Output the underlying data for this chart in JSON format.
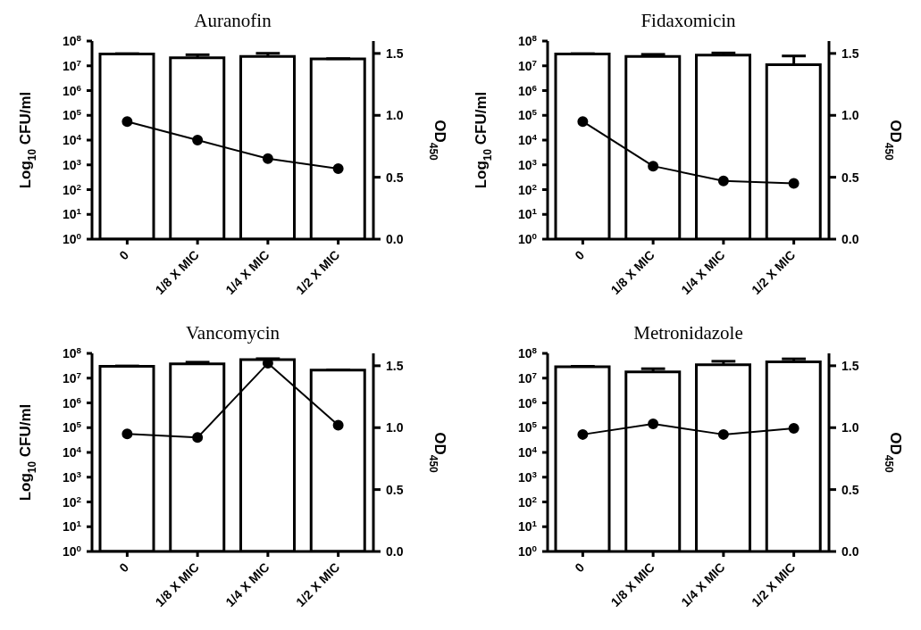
{
  "chart_data": [
    {
      "type": "bar",
      "title": "Auranofin",
      "ylabel": "Log$_{10}$ CFU/ml",
      "y2label": "OD$_{450}$",
      "categories": [
        "0",
        "1/8 X MIC",
        "1/4 X MIC",
        "1/2 X MIC"
      ],
      "ylim": [
        1,
        100000000
      ],
      "yticks": [
        {
          "value": 1,
          "label": "10$^{0}$"
        },
        {
          "value": 10,
          "label": "10$^{1}$"
        },
        {
          "value": 100,
          "label": "10$^{2}$"
        },
        {
          "value": 1000,
          "label": "10$^{3}$"
        },
        {
          "value": 10000,
          "label": "10$^{4}$"
        },
        {
          "value": 100000,
          "label": "10$^{5}$"
        },
        {
          "value": 1000000,
          "label": "10$^{6}$"
        },
        {
          "value": 10000000,
          "label": "10$^{7}$"
        },
        {
          "value": 100000000,
          "label": "10$^{8}$"
        }
      ],
      "log": "y",
      "y2lim": [
        0,
        1.6
      ],
      "y2ticks": [
        {
          "value": 0,
          "label": "0.0"
        },
        {
          "value": 0.5,
          "label": "0.5"
        },
        {
          "value": 1,
          "label": "1.0"
        },
        {
          "value": 1.5,
          "label": "1.5"
        }
      ],
      "series": [
        {
          "color": "#ffffff",
          "values": [
            30000000,
            21000000,
            24000000,
            19000000
          ],
          "errors": [
            [
              30000000,
              31000000
            ],
            [
              21000000,
              28000000
            ],
            [
              24000000,
              32000000
            ],
            [
              19000000,
              19500000
            ]
          ]
        },
        {
          "type": "line",
          "axis": "y2",
          "color": "#000000",
          "marker": "circle",
          "line_style": "solid",
          "values": [
            0.95,
            0.8,
            0.65,
            0.57
          ]
        }
      ]
    },
    {
      "type": "bar",
      "title": "Fidaxomicin",
      "ylabel": "Log$_{10}$ CFU/ml",
      "y2label": "OD$_{450}$",
      "categories": [
        "0",
        "1/8 X MIC",
        "1/4 X MIC",
        "1/2 X MIC"
      ],
      "ylim": [
        1,
        100000000
      ],
      "yticks": [
        {
          "value": 1,
          "label": "10$^{0}$"
        },
        {
          "value": 10,
          "label": "10$^{1}$"
        },
        {
          "value": 100,
          "label": "10$^{2}$"
        },
        {
          "value": 1000,
          "label": "10$^{3}$"
        },
        {
          "value": 10000,
          "label": "10$^{4}$"
        },
        {
          "value": 100000,
          "label": "10$^{5}$"
        },
        {
          "value": 1000000,
          "label": "10$^{6}$"
        },
        {
          "value": 10000000,
          "label": "10$^{7}$"
        },
        {
          "value": 100000000,
          "label": "10$^{8}$"
        }
      ],
      "log": "y",
      "y2lim": [
        0,
        1.6
      ],
      "y2ticks": [
        {
          "value": 0,
          "label": "0.0"
        },
        {
          "value": 0.5,
          "label": "0.5"
        },
        {
          "value": 1,
          "label": "1.0"
        },
        {
          "value": 1.5,
          "label": "1.5"
        }
      ],
      "series": [
        {
          "color": "#ffffff",
          "values": [
            30000000,
            24000000,
            27000000,
            11000000
          ],
          "errors": [
            [
              30000000,
              31000000
            ],
            [
              24000000,
              29000000
            ],
            [
              27000000,
              33000000
            ],
            [
              11000000,
              25000000
            ]
          ]
        },
        {
          "type": "line",
          "axis": "y2",
          "color": "#000000",
          "marker": "circle",
          "line_style": "solid",
          "values": [
            0.95,
            0.59,
            0.47,
            0.45
          ]
        }
      ]
    },
    {
      "type": "bar",
      "title": "Vancomycin",
      "ylabel": "Log$_{10}$ CFU/ml",
      "y2label": "OD$_{450}$",
      "categories": [
        "0",
        "1/8 X MIC",
        "1/4 X MIC",
        "1/2 X MIC"
      ],
      "ylim": [
        1,
        100000000
      ],
      "yticks": [
        {
          "value": 1,
          "label": "10$^{0}$"
        },
        {
          "value": 10,
          "label": "10$^{1}$"
        },
        {
          "value": 100,
          "label": "10$^{2}$"
        },
        {
          "value": 1000,
          "label": "10$^{3}$"
        },
        {
          "value": 10000,
          "label": "10$^{4}$"
        },
        {
          "value": 100000,
          "label": "10$^{5}$"
        },
        {
          "value": 1000000,
          "label": "10$^{6}$"
        },
        {
          "value": 10000000,
          "label": "10$^{7}$"
        },
        {
          "value": 100000000,
          "label": "10$^{8}$"
        }
      ],
      "log": "y",
      "y2lim": [
        0,
        1.6
      ],
      "y2ticks": [
        {
          "value": 0,
          "label": "0.0"
        },
        {
          "value": 0.5,
          "label": "0.5"
        },
        {
          "value": 1,
          "label": "1.0"
        },
        {
          "value": 1.5,
          "label": "1.5"
        }
      ],
      "series": [
        {
          "color": "#ffffff",
          "values": [
            30000000,
            38000000,
            56000000,
            21000000
          ],
          "errors": [
            [
              30000000,
              31000000
            ],
            [
              38000000,
              44000000
            ],
            [
              56000000,
              61000000
            ],
            [
              21000000,
              21500000
            ]
          ]
        },
        {
          "type": "line",
          "axis": "y2",
          "color": "#000000",
          "marker": "circle",
          "line_style": "solid",
          "values": [
            0.95,
            0.92,
            1.52,
            1.02
          ]
        }
      ]
    },
    {
      "type": "bar",
      "title": "Metronidazole",
      "y2label": "OD$_{450}$",
      "categories": [
        "0",
        "1/8 X MIC",
        "1/4 X MIC",
        "1/2 X MIC"
      ],
      "ylim": [
        1,
        100000000
      ],
      "yticks": [
        {
          "value": 1,
          "label": "10$^{0}$"
        },
        {
          "value": 10,
          "label": "10$^{1}$"
        },
        {
          "value": 100,
          "label": "10$^{2}$"
        },
        {
          "value": 1000,
          "label": "10$^{3}$"
        },
        {
          "value": 10000,
          "label": "10$^{4}$"
        },
        {
          "value": 100000,
          "label": "10$^{5}$"
        },
        {
          "value": 1000000,
          "label": "10$^{6}$"
        },
        {
          "value": 10000000,
          "label": "10$^{7}$"
        },
        {
          "value": 100000000,
          "label": "10$^{8}$"
        }
      ],
      "log": "y",
      "y2lim": [
        0,
        1.6
      ],
      "y2ticks": [
        {
          "value": 0,
          "label": "0.0"
        },
        {
          "value": 0.5,
          "label": "0.5"
        },
        {
          "value": 1,
          "label": "1.0"
        },
        {
          "value": 1.5,
          "label": "1.5"
        }
      ],
      "series": [
        {
          "color": "#ffffff",
          "values": [
            29000000,
            18000000,
            35000000,
            45000000
          ],
          "errors": [
            [
              29000000,
              30000000
            ],
            [
              18000000,
              24000000
            ],
            [
              35000000,
              48000000
            ],
            [
              45000000,
              60000000
            ]
          ]
        },
        {
          "type": "line",
          "axis": "y2",
          "color": "#000000",
          "marker": "circle",
          "line_style": "solid",
          "values": [
            0.945,
            1.03,
            0.945,
            0.995
          ]
        }
      ]
    }
  ]
}
